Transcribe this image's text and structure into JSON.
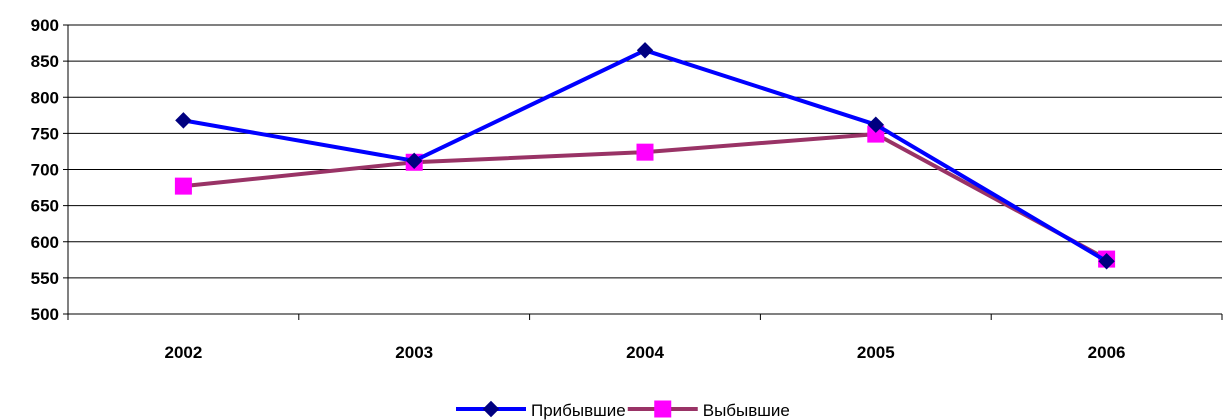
{
  "chart_data": {
    "type": "line",
    "title": "",
    "xlabel": "",
    "ylabel": "",
    "categories": [
      "2002",
      "2003",
      "2004",
      "2005",
      "2006"
    ],
    "ylim": [
      500,
      900
    ],
    "yticks": [
      500,
      550,
      600,
      650,
      700,
      750,
      800,
      850,
      900
    ],
    "grid": "horizontal",
    "legend_position": "bottom-center",
    "series": [
      {
        "name": "Прибывшие",
        "values": [
          768,
          712,
          865,
          762,
          573
        ],
        "color": "#0000FF",
        "marker": "diamond",
        "marker_color": "#000080"
      },
      {
        "name": "Выбывшие",
        "values": [
          677,
          710,
          724,
          749,
          576
        ],
        "color": "#993366",
        "marker": "square",
        "marker_color": "#FF00FF"
      }
    ]
  }
}
